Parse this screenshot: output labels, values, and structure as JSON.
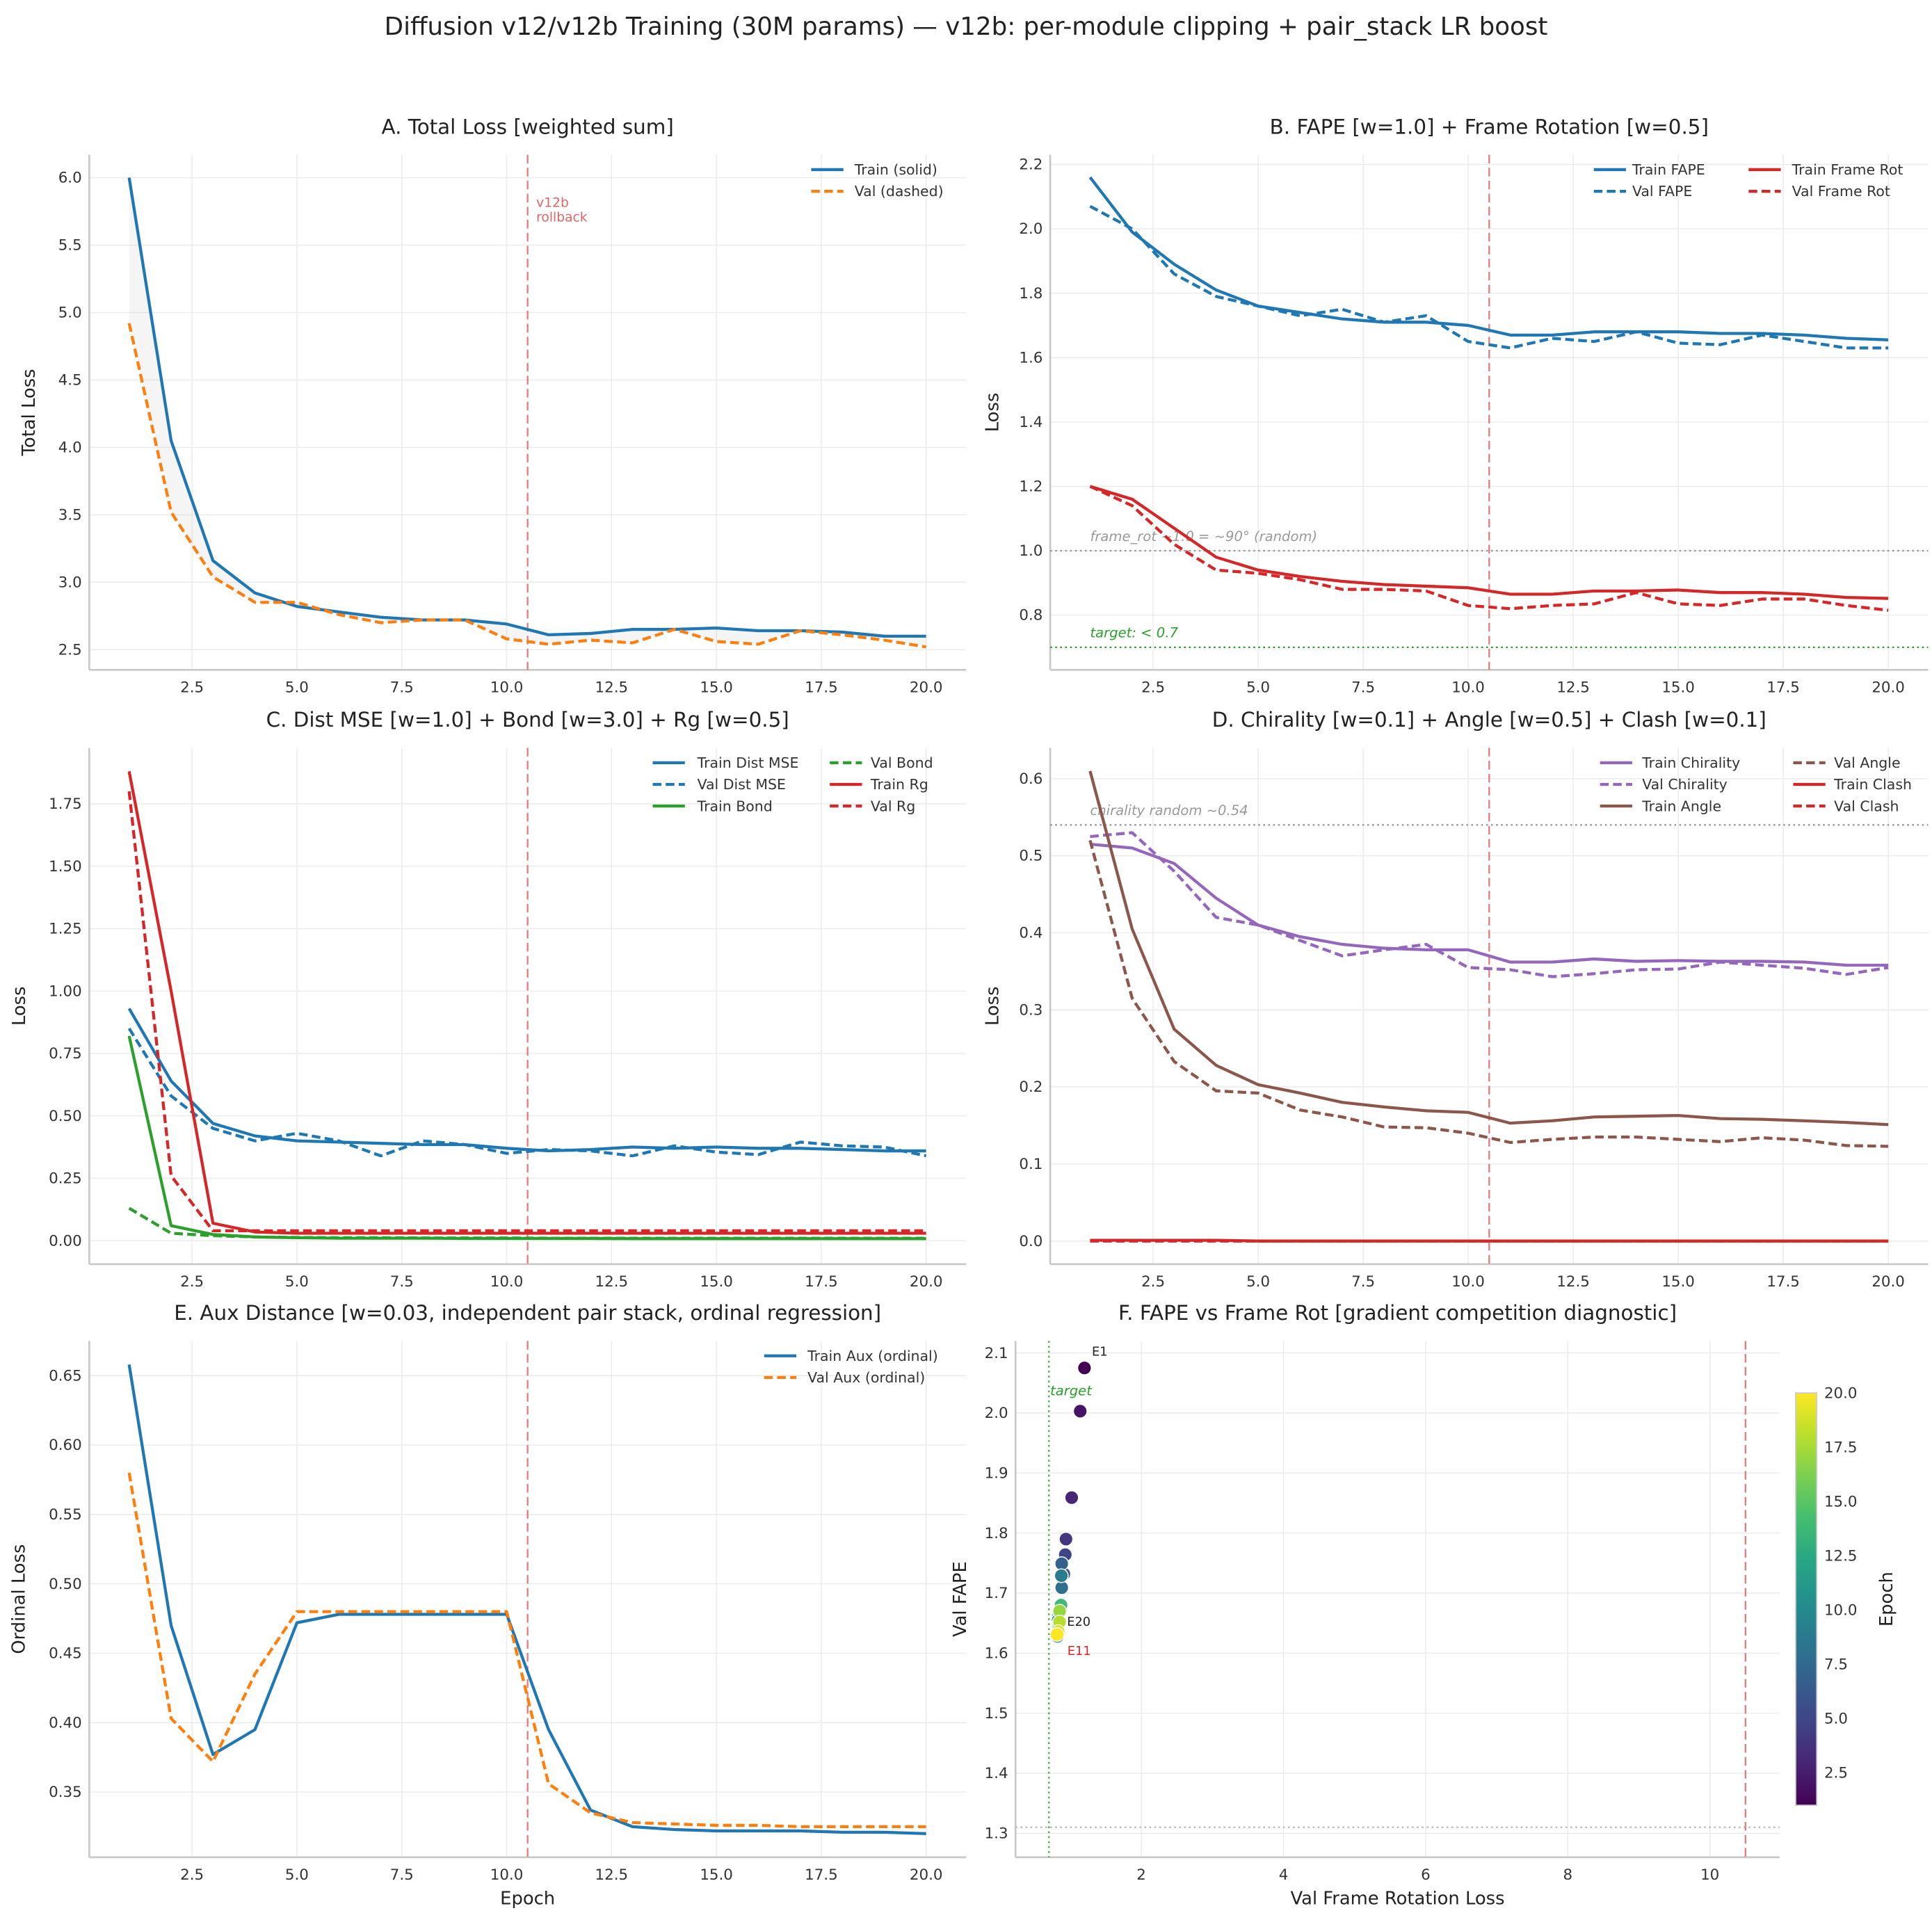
{
  "suptitle": "Diffusion v12/v12b Training (30M params) — v12b: per-module clipping + pair_stack LR boost",
  "chart_data": [
    {
      "type": "line",
      "title": "A.  Total Loss  [weighted sum]",
      "xlabel": "",
      "ylabel": "Total Loss",
      "xlim": [
        0.05,
        20.95
      ],
      "ylim": [
        2.35,
        6.17
      ],
      "xticks": [
        "2.5",
        "5.0",
        "7.5",
        "10.0",
        "12.5",
        "15.0",
        "17.5",
        "20.0"
      ],
      "yticks": [
        "2.5",
        "3.0",
        "3.5",
        "4.0",
        "4.5",
        "5.0",
        "5.5",
        "6.0"
      ],
      "x": [
        1,
        2,
        3,
        4,
        5,
        6,
        7,
        8,
        9,
        10,
        11,
        12,
        13,
        14,
        15,
        16,
        17,
        18,
        19,
        20
      ],
      "fill_between": true,
      "series": [
        {
          "name": "Train (solid)",
          "color": "#1f77b4",
          "dash": "solid",
          "values": [
            6.0,
            4.05,
            3.16,
            2.92,
            2.82,
            2.78,
            2.74,
            2.72,
            2.72,
            2.69,
            2.61,
            2.62,
            2.65,
            2.65,
            2.66,
            2.64,
            2.64,
            2.63,
            2.6,
            2.6
          ]
        },
        {
          "name": "Val (dashed)",
          "color": "#ff7f0e",
          "dash": "dashed",
          "values": [
            4.92,
            3.52,
            3.04,
            2.85,
            2.85,
            2.76,
            2.7,
            2.72,
            2.72,
            2.58,
            2.54,
            2.57,
            2.55,
            2.65,
            2.56,
            2.54,
            2.64,
            2.61,
            2.57,
            2.52
          ]
        }
      ],
      "vlines": [
        {
          "x": 10.5,
          "color": "#e06666",
          "style": "dashed",
          "label": "v12b rollback",
          "label_lines": [
            "v12b",
            "rollback"
          ]
        }
      ],
      "hlines": [],
      "legend": "top-right"
    },
    {
      "type": "line",
      "title": "B.  FAPE [w=1.0] + Frame Rotation [w=0.5]",
      "xlabel": "",
      "ylabel": "Loss",
      "xlim": [
        0.05,
        20.95
      ],
      "ylim": [
        0.63,
        2.23
      ],
      "xticks": [
        "2.5",
        "5.0",
        "7.5",
        "10.0",
        "12.5",
        "15.0",
        "17.5",
        "20.0"
      ],
      "yticks": [
        "0.8",
        "1.0",
        "1.2",
        "1.4",
        "1.6",
        "1.8",
        "2.0",
        "2.2"
      ],
      "x": [
        1,
        2,
        3,
        4,
        5,
        6,
        7,
        8,
        9,
        10,
        11,
        12,
        13,
        14,
        15,
        16,
        17,
        18,
        19,
        20
      ],
      "series": [
        {
          "name": "Train FAPE",
          "color": "#1f77b4",
          "dash": "solid",
          "values": [
            2.16,
            1.99,
            1.89,
            1.81,
            1.76,
            1.74,
            1.72,
            1.71,
            1.71,
            1.7,
            1.67,
            1.67,
            1.68,
            1.68,
            1.68,
            1.675,
            1.675,
            1.67,
            1.66,
            1.655
          ]
        },
        {
          "name": "Val FAPE",
          "color": "#1f77b4",
          "dash": "dashed",
          "values": [
            2.07,
            2.0,
            1.86,
            1.79,
            1.76,
            1.73,
            1.75,
            1.71,
            1.73,
            1.65,
            1.63,
            1.66,
            1.65,
            1.68,
            1.645,
            1.64,
            1.67,
            1.65,
            1.63,
            1.63
          ]
        },
        {
          "name": "Train Frame Rot",
          "color": "#d62728",
          "dash": "solid",
          "values": [
            1.2,
            1.16,
            1.07,
            0.98,
            0.94,
            0.92,
            0.905,
            0.895,
            0.89,
            0.885,
            0.865,
            0.865,
            0.875,
            0.875,
            0.878,
            0.87,
            0.87,
            0.865,
            0.855,
            0.852
          ]
        },
        {
          "name": "Val Frame Rot",
          "color": "#d62728",
          "dash": "dashed",
          "values": [
            1.2,
            1.14,
            1.02,
            0.94,
            0.93,
            0.91,
            0.88,
            0.88,
            0.875,
            0.83,
            0.82,
            0.83,
            0.835,
            0.87,
            0.835,
            0.83,
            0.85,
            0.85,
            0.83,
            0.815
          ]
        }
      ],
      "vlines": [
        {
          "x": 10.5,
          "color": "#e06666",
          "style": "dashed"
        }
      ],
      "hlines": [
        {
          "y": 1.0,
          "color": "#999999",
          "style": "dotted",
          "label": "frame_rot ~1.0 = ~90° (random)"
        },
        {
          "y": 0.7,
          "color": "#2ca02c",
          "style": "dotted",
          "label": "target: < 0.7"
        }
      ],
      "legend": "top-right"
    },
    {
      "type": "line",
      "title": "C.  Dist MSE [w=1.0] + Bond [w=3.0] + Rg [w=0.5]",
      "xlabel": "",
      "ylabel": "Loss",
      "xlim": [
        0.05,
        20.95
      ],
      "ylim": [
        -0.094,
        1.974
      ],
      "xticks": [
        "2.5",
        "5.0",
        "7.5",
        "10.0",
        "12.5",
        "15.0",
        "17.5",
        "20.0"
      ],
      "yticks": [
        "0.00",
        "0.25",
        "0.50",
        "0.75",
        "1.00",
        "1.25",
        "1.50",
        "1.75"
      ],
      "x": [
        1,
        2,
        3,
        4,
        5,
        6,
        7,
        8,
        9,
        10,
        11,
        12,
        13,
        14,
        15,
        16,
        17,
        18,
        19,
        20
      ],
      "series": [
        {
          "name": "Train Dist MSE",
          "color": "#1f77b4",
          "dash": "solid",
          "values": [
            0.93,
            0.64,
            0.47,
            0.42,
            0.4,
            0.395,
            0.39,
            0.385,
            0.385,
            0.37,
            0.36,
            0.365,
            0.375,
            0.37,
            0.375,
            0.37,
            0.37,
            0.365,
            0.36,
            0.36
          ]
        },
        {
          "name": "Val Dist MSE",
          "color": "#1f77b4",
          "dash": "dashed",
          "values": [
            0.85,
            0.58,
            0.45,
            0.4,
            0.43,
            0.4,
            0.34,
            0.4,
            0.385,
            0.35,
            0.365,
            0.36,
            0.34,
            0.38,
            0.355,
            0.345,
            0.395,
            0.38,
            0.375,
            0.34
          ]
        },
        {
          "name": "Train Bond",
          "color": "#2ca02c",
          "dash": "solid",
          "values": [
            0.82,
            0.06,
            0.025,
            0.015,
            0.012,
            0.01,
            0.01,
            0.01,
            0.009,
            0.009,
            0.009,
            0.009,
            0.008,
            0.008,
            0.008,
            0.008,
            0.008,
            0.008,
            0.008,
            0.008
          ]
        },
        {
          "name": "Val Bond",
          "color": "#2ca02c",
          "dash": "dashed",
          "values": [
            0.13,
            0.03,
            0.02,
            0.015,
            0.013,
            0.012,
            0.012,
            0.011,
            0.011,
            0.011,
            0.01,
            0.01,
            0.01,
            0.01,
            0.01,
            0.01,
            0.01,
            0.01,
            0.01,
            0.01
          ]
        },
        {
          "name": "Train Rg",
          "color": "#d62728",
          "dash": "solid",
          "values": [
            1.88,
            1.0,
            0.07,
            0.035,
            0.03,
            0.03,
            0.03,
            0.03,
            0.03,
            0.03,
            0.03,
            0.03,
            0.03,
            0.03,
            0.03,
            0.03,
            0.03,
            0.03,
            0.03,
            0.03
          ]
        },
        {
          "name": "Val Rg",
          "color": "#d62728",
          "dash": "dashed",
          "values": [
            1.8,
            0.26,
            0.04,
            0.04,
            0.04,
            0.04,
            0.04,
            0.04,
            0.04,
            0.04,
            0.04,
            0.04,
            0.04,
            0.04,
            0.04,
            0.04,
            0.04,
            0.04,
            0.04,
            0.04
          ]
        }
      ],
      "vlines": [
        {
          "x": 10.5,
          "color": "#e06666",
          "style": "dashed"
        }
      ],
      "hlines": [],
      "legend": "top-right"
    },
    {
      "type": "line",
      "title": "D.  Chirality [w=0.1] + Angle [w=0.5] + Clash [w=0.1]",
      "xlabel": "",
      "ylabel": "Loss",
      "xlim": [
        0.05,
        20.95
      ],
      "ylim": [
        -0.03,
        0.64
      ],
      "xticks": [
        "2.5",
        "5.0",
        "7.5",
        "10.0",
        "12.5",
        "15.0",
        "17.5",
        "20.0"
      ],
      "yticks": [
        "0.0",
        "0.1",
        "0.2",
        "0.3",
        "0.4",
        "0.5",
        "0.6"
      ],
      "x": [
        1,
        2,
        3,
        4,
        5,
        6,
        7,
        8,
        9,
        10,
        11,
        12,
        13,
        14,
        15,
        16,
        17,
        18,
        19,
        20
      ],
      "series": [
        {
          "name": "Train Chirality",
          "color": "#9467bd",
          "dash": "solid",
          "values": [
            0.515,
            0.51,
            0.49,
            0.445,
            0.41,
            0.395,
            0.385,
            0.38,
            0.378,
            0.378,
            0.362,
            0.362,
            0.366,
            0.363,
            0.364,
            0.363,
            0.363,
            0.362,
            0.358,
            0.358
          ]
        },
        {
          "name": "Val Chirality",
          "color": "#9467bd",
          "dash": "dashed",
          "values": [
            0.525,
            0.53,
            0.48,
            0.42,
            0.41,
            0.39,
            0.37,
            0.378,
            0.385,
            0.355,
            0.352,
            0.343,
            0.347,
            0.352,
            0.353,
            0.362,
            0.358,
            0.354,
            0.346,
            0.355
          ]
        },
        {
          "name": "Train Angle",
          "color": "#8c564b",
          "dash": "solid",
          "values": [
            0.61,
            0.405,
            0.275,
            0.228,
            0.203,
            0.192,
            0.18,
            0.174,
            0.169,
            0.167,
            0.153,
            0.156,
            0.161,
            0.162,
            0.163,
            0.159,
            0.158,
            0.156,
            0.154,
            0.151
          ]
        },
        {
          "name": "Val Angle",
          "color": "#8c564b",
          "dash": "dashed",
          "values": [
            0.52,
            0.315,
            0.233,
            0.195,
            0.192,
            0.17,
            0.161,
            0.148,
            0.147,
            0.14,
            0.128,
            0.132,
            0.135,
            0.135,
            0.132,
            0.129,
            0.134,
            0.131,
            0.124,
            0.123
          ]
        },
        {
          "name": "Train Clash",
          "color": "#d62728",
          "dash": "solid",
          "values": [
            0.001,
            0.001,
            0.001,
            0.001,
            0.0,
            0.0,
            0.0,
            0.0,
            0.0,
            0.0,
            0.0,
            0.0,
            0.0,
            0.0,
            0.0,
            0.0,
            0.0,
            0.0,
            0.0,
            0.0
          ]
        },
        {
          "name": "Val Clash",
          "color": "#d62728",
          "dash": "dashed",
          "values": [
            0.0,
            0.0,
            0.0,
            0.0,
            0.0,
            0.0,
            0.0,
            0.0,
            0.0,
            0.0,
            0.0,
            0.0,
            0.0,
            0.0,
            0.0,
            0.0,
            0.0,
            0.0,
            0.0,
            0.0
          ]
        }
      ],
      "vlines": [
        {
          "x": 10.5,
          "color": "#e06666",
          "style": "dashed"
        }
      ],
      "hlines": [
        {
          "y": 0.54,
          "color": "#999999",
          "style": "dotted",
          "label": "chirality random ~0.54"
        }
      ],
      "legend": "top-right"
    },
    {
      "type": "line",
      "title": "E.  Aux Distance  [w=0.03, independent pair stack, ordinal regression]",
      "xlabel": "Epoch",
      "ylabel": "Ordinal Loss",
      "xlim": [
        0.05,
        20.95
      ],
      "ylim": [
        0.303,
        0.675
      ],
      "xticks": [
        "2.5",
        "5.0",
        "7.5",
        "10.0",
        "12.5",
        "15.0",
        "17.5",
        "20.0"
      ],
      "yticks": [
        "0.35",
        "0.40",
        "0.45",
        "0.50",
        "0.55",
        "0.60",
        "0.65"
      ],
      "x": [
        1,
        2,
        3,
        4,
        5,
        6,
        7,
        8,
        9,
        10,
        11,
        12,
        13,
        14,
        15,
        16,
        17,
        18,
        19,
        20
      ],
      "series": [
        {
          "name": "Train Aux (ordinal)",
          "color": "#1f77b4",
          "dash": "solid",
          "values": [
            0.658,
            0.47,
            0.377,
            0.395,
            0.472,
            0.478,
            0.478,
            0.478,
            0.478,
            0.478,
            0.395,
            0.337,
            0.325,
            0.323,
            0.322,
            0.322,
            0.322,
            0.321,
            0.321,
            0.32
          ]
        },
        {
          "name": "Val Aux (ordinal)",
          "color": "#ff7f0e",
          "dash": "dashed",
          "values": [
            0.58,
            0.403,
            0.372,
            0.435,
            0.48,
            0.48,
            0.48,
            0.48,
            0.48,
            0.48,
            0.356,
            0.335,
            0.328,
            0.327,
            0.326,
            0.326,
            0.325,
            0.325,
            0.325,
            0.325
          ]
        }
      ],
      "vlines": [
        {
          "x": 10.5,
          "color": "#e06666",
          "style": "dashed"
        }
      ],
      "hlines": [],
      "legend": "top-right"
    },
    {
      "type": "scatter",
      "title": "F.  FAPE vs Frame Rot  [gradient competition diagnostic]",
      "xlabel": "Val Frame Rotation Loss",
      "ylabel": "Val FAPE",
      "xlim": [
        0.23,
        10.98
      ],
      "ylim": [
        1.26,
        2.12
      ],
      "xticks": [
        "2",
        "4",
        "6",
        "8",
        "10"
      ],
      "yticks": [
        "1.3",
        "1.4",
        "1.5",
        "1.6",
        "1.7",
        "1.8",
        "1.9",
        "2.0",
        "2.1"
      ],
      "colormap": "viridis",
      "colorbar": {
        "label": "Epoch",
        "range": [
          1,
          20
        ],
        "ticks": [
          "2.5",
          "5.0",
          "7.5",
          "10.0",
          "12.5",
          "15.0",
          "17.5",
          "20.0"
        ]
      },
      "points": {
        "x": [
          1.2,
          1.14,
          1.02,
          0.94,
          0.93,
          0.91,
          0.88,
          0.88,
          0.875,
          0.83,
          0.82,
          0.83,
          0.835,
          0.87,
          0.835,
          0.83,
          0.85,
          0.85,
          0.83,
          0.815
        ],
        "y": [
          2.075,
          2.003,
          1.859,
          1.79,
          1.764,
          1.732,
          1.749,
          1.709,
          1.729,
          1.66,
          1.628,
          1.655,
          1.648,
          1.68,
          1.645,
          1.64,
          1.67,
          1.652,
          1.636,
          1.631
        ],
        "epoch": [
          1,
          2,
          3,
          4,
          5,
          6,
          7,
          8,
          9,
          10,
          11,
          12,
          13,
          14,
          15,
          16,
          17,
          18,
          19,
          20
        ]
      },
      "point_labels": [
        {
          "text": "E1",
          "epoch": 1,
          "color": "#222222"
        },
        {
          "text": "E11",
          "epoch": 11,
          "color": "#d62728"
        },
        {
          "text": "E20",
          "epoch": 20,
          "color": "#222222"
        }
      ],
      "vlines": [
        {
          "x": 0.7,
          "color": "#2ca02c",
          "style": "dotted",
          "label": "target"
        },
        {
          "x": 10.5,
          "color": "#e06666",
          "style": "dashed"
        }
      ],
      "hlines": [
        {
          "y": 1.31,
          "color": "#bbbbbb",
          "style": "dotted"
        }
      ]
    }
  ]
}
